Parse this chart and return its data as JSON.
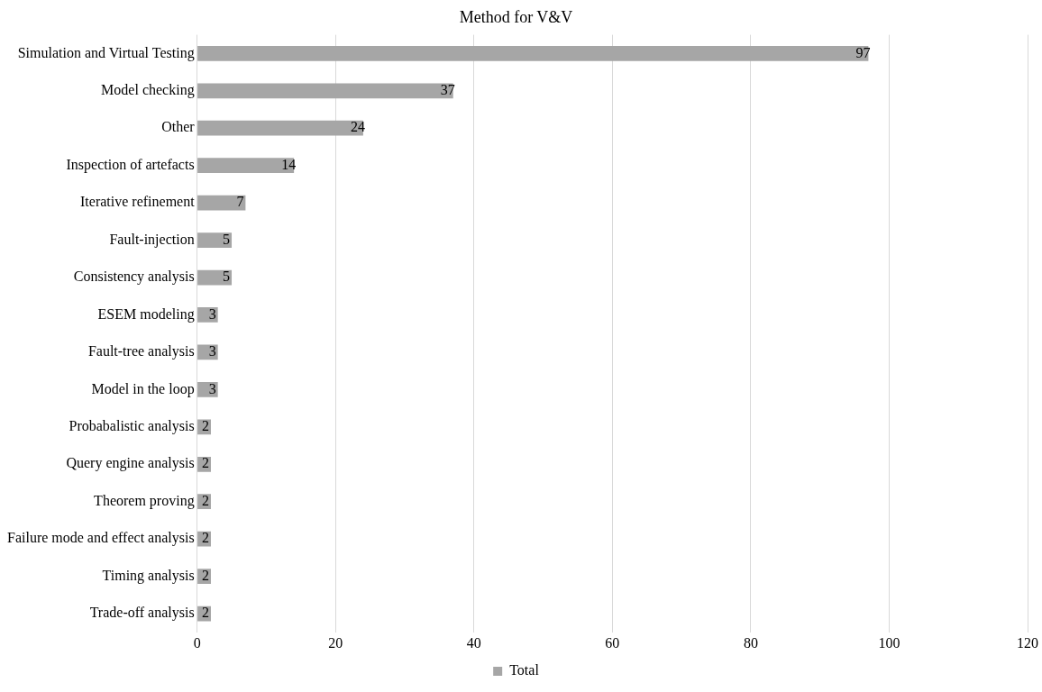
{
  "chart_data": {
    "type": "bar",
    "orientation": "horizontal",
    "title": "Method for V&V",
    "categories": [
      "Simulation and Virtual Testing",
      "Model checking",
      "Other",
      "Inspection of artefacts",
      "Iterative refinement",
      "Fault-injection",
      "Consistency analysis",
      "ESEM modeling",
      "Fault-tree analysis",
      "Model in the loop",
      "Probabalistic analysis",
      "Query engine analysis",
      "Theorem proving",
      "Failure mode and effect analysis",
      "Timing analysis",
      "Trade-off analysis"
    ],
    "series": [
      {
        "name": "Total",
        "color": "#a6a6a6",
        "values": [
          97,
          37,
          24,
          14,
          7,
          5,
          5,
          3,
          3,
          3,
          2,
          2,
          2,
          2,
          2,
          2
        ]
      }
    ],
    "xlim": [
      0,
      120
    ],
    "xticks": [
      0,
      20,
      40,
      60,
      80,
      100,
      120
    ],
    "grid": "x",
    "legend": "bottom",
    "data_labels": true
  }
}
